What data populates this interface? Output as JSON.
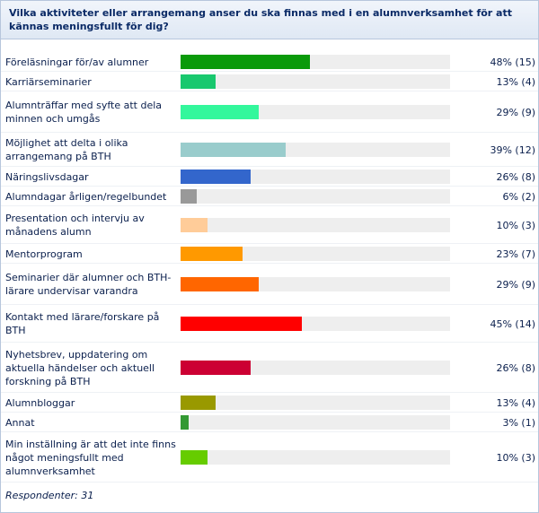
{
  "question": "Vilka aktiviteter eller arrangemang anser du ska finnas med i en alumnverksamhet för att kännas meningsfullt för dig?",
  "respondents_label": "Respondenter: 31",
  "chart_data": {
    "type": "bar",
    "orientation": "horizontal",
    "xlim": [
      0,
      100
    ],
    "categories": [
      "Föreläsningar för/av alumner",
      "Karriärseminarier",
      "Alumnträffar med syfte att dela minnen och umgås",
      "Möjlighet att delta i olika arrangemang på BTH",
      "Näringslivsdagar",
      "Alumndagar årligen/regelbundet",
      "Presentation och intervju av månadens alumn",
      "Mentorprogram",
      "Seminarier där alumner och BTH-lärare undervisar varandra",
      "Kontakt med lärare/forskare på BTH",
      "Nyhetsbrev, uppdatering om aktuella händelser och aktuell forskning på BTH",
      "Alumnbloggar",
      "Annat",
      "Min inställning är att det inte finns något meningsfullt med alumnverksamhet"
    ],
    "values": [
      48,
      13,
      29,
      39,
      26,
      6,
      10,
      23,
      29,
      45,
      26,
      13,
      3,
      10
    ],
    "counts": [
      15,
      4,
      9,
      12,
      8,
      2,
      3,
      7,
      9,
      14,
      8,
      4,
      1,
      3
    ],
    "value_labels": [
      "48% (15)",
      "13% (4)",
      "29% (9)",
      "39% (12)",
      "26% (8)",
      "6% (2)",
      "10% (3)",
      "23% (7)",
      "29% (9)",
      "45% (14)",
      "26% (8)",
      "13% (4)",
      "3% (1)",
      "10% (3)"
    ],
    "colors": [
      "#0a9a0a",
      "#19c86e",
      "#33f79c",
      "#99cccc",
      "#3366cc",
      "#999999",
      "#ffcc99",
      "#ff9900",
      "#ff6600",
      "#ff0000",
      "#cc0033",
      "#999900",
      "#339933",
      "#66cc00"
    ]
  }
}
